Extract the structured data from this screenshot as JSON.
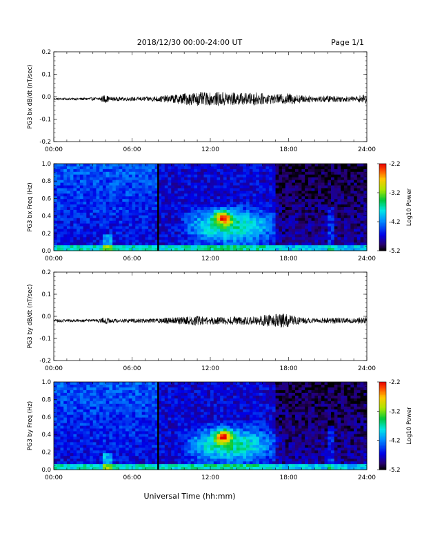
{
  "header": {
    "title": "2018/12/30  00:00-24:00 UT",
    "page": "Page 1/1"
  },
  "footer": {
    "xlabel": "Universal Time (hh:mm)"
  },
  "chart_data": [
    {
      "type": "line",
      "ylabel": "PG3 bx dB/dt (nT/sec)",
      "ylim": [
        -0.2,
        0.2
      ],
      "yticks": [
        "0.2",
        "0.1",
        "0.0",
        "-0.1",
        "-0.2"
      ],
      "xticks": [
        "00:00",
        "06:00",
        "12:00",
        "18:00",
        "24:00"
      ],
      "xlim_hours": [
        0,
        24
      ],
      "baseline": -0.01,
      "series": [
        {
          "x": [
            0,
            2,
            3.5,
            3.9,
            4.3,
            5,
            6,
            7,
            8,
            9,
            10,
            11,
            12,
            13,
            14,
            15,
            15.5,
            16,
            17,
            18,
            19,
            20,
            21,
            22,
            23,
            24
          ],
          "y_amplitude": [
            0.004,
            0.005,
            0.007,
            0.018,
            0.009,
            0.008,
            0.008,
            0.009,
            0.012,
            0.016,
            0.024,
            0.028,
            0.026,
            0.03,
            0.026,
            0.024,
            0.028,
            0.022,
            0.018,
            0.024,
            0.016,
            0.012,
            0.014,
            0.012,
            0.01,
            0.02
          ]
        }
      ]
    },
    {
      "type": "heatmap",
      "ylabel": "PG3 bx Freq (Hz)",
      "ylim": [
        0.0,
        1.0
      ],
      "yticks": [
        "1.0",
        "0.8",
        "0.6",
        "0.4",
        "0.2",
        "0.0"
      ],
      "xticks": [
        "00:00",
        "06:00",
        "12:00",
        "18:00",
        "24:00"
      ],
      "colorbar": {
        "label": "Log10 Power",
        "ticks": [
          "-2.2",
          "-3.2",
          "-4.2",
          "-5.2"
        ],
        "range": [
          -5.2,
          -2.2
        ]
      },
      "marker_line_hour": 8.0,
      "peak": {
        "hour": 13.0,
        "freq_hz": 0.38,
        "log_power": -2.4
      }
    },
    {
      "type": "line",
      "ylabel": "PG3 by dB/dt (nT/sec)",
      "ylim": [
        -0.2,
        0.2
      ],
      "yticks": [
        "0.2",
        "0.1",
        "0.0",
        "-0.1",
        "-0.2"
      ],
      "xticks": [
        "00:00",
        "06:00",
        "12:00",
        "18:00",
        "24:00"
      ],
      "xlim_hours": [
        0,
        24
      ],
      "baseline": -0.02,
      "series": [
        {
          "x": [
            0,
            2,
            3.5,
            3.9,
            4.3,
            5,
            6,
            7,
            8,
            9,
            10,
            11,
            12,
            13,
            14,
            15,
            16,
            17,
            17.5,
            18,
            19,
            20,
            21,
            22,
            23,
            24
          ],
          "y_amplitude": [
            0.006,
            0.006,
            0.007,
            0.016,
            0.009,
            0.008,
            0.008,
            0.009,
            0.01,
            0.014,
            0.016,
            0.02,
            0.016,
            0.015,
            0.018,
            0.016,
            0.022,
            0.028,
            0.03,
            0.026,
            0.014,
            0.01,
            0.012,
            0.012,
            0.01,
            0.018
          ]
        }
      ]
    },
    {
      "type": "heatmap",
      "ylabel": "PG3 by Freq (Hz)",
      "ylim": [
        0.0,
        1.0
      ],
      "yticks": [
        "1.0",
        "0.8",
        "0.6",
        "0.4",
        "0.2",
        "0.0"
      ],
      "xticks": [
        "00:00",
        "06:00",
        "12:00",
        "18:00",
        "24:00"
      ],
      "colorbar": {
        "label": "Log10 Power",
        "ticks": [
          "-2.2",
          "-3.2",
          "-4.2",
          "-5.2"
        ],
        "range": [
          -5.2,
          -2.2
        ]
      },
      "marker_line_hour": 8.0,
      "peak": {
        "hour": 13.0,
        "freq_hz": 0.38,
        "log_power": -2.4
      }
    }
  ]
}
